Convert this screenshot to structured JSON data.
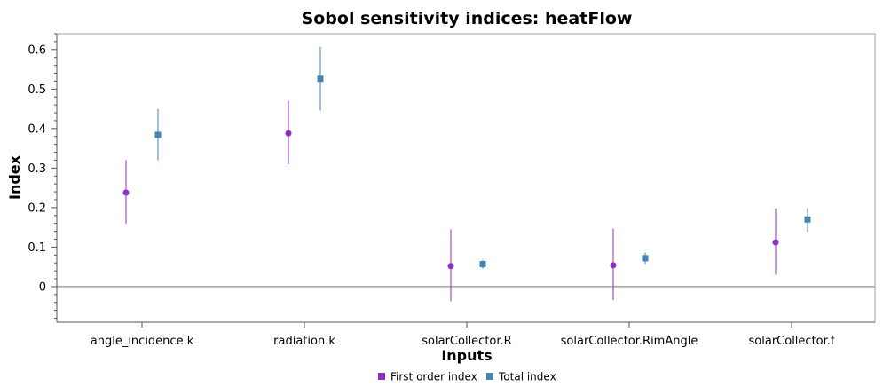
{
  "chart_data": {
    "type": "scatter",
    "title": "Sobol sensitivity indices: heatFlow",
    "xlabel": "Inputs",
    "ylabel": "Index",
    "categories": [
      "angle_incidence.k",
      "radiation.k",
      "solarCollector.R",
      "solarCollector.RimAngle",
      "solarCollector.f"
    ],
    "ylim": [
      -0.09,
      0.64
    ],
    "yticks": [
      0,
      0.1,
      0.2,
      0.3,
      0.4,
      0.5,
      0.6
    ],
    "yticklabels": [
      "0",
      "0.1",
      "0.2",
      "0.3",
      "0.4",
      "0.5",
      "0.6"
    ],
    "grid": false,
    "zero_line": true,
    "legend_position": "bottom",
    "series": [
      {
        "name": "First order index",
        "color": "#8b2fc9",
        "marker": "circle",
        "values": [
          0.238,
          0.388,
          0.052,
          0.054,
          0.112
        ],
        "lower": [
          0.16,
          0.31,
          -0.037,
          -0.034,
          0.03
        ],
        "upper": [
          0.32,
          0.47,
          0.145,
          0.147,
          0.198
        ]
      },
      {
        "name": "Total index",
        "color": "#4682b4",
        "marker": "square",
        "values": [
          0.384,
          0.526,
          0.057,
          0.072,
          0.17
        ],
        "lower": [
          0.32,
          0.446,
          0.046,
          0.058,
          0.139
        ],
        "upper": [
          0.449,
          0.607,
          0.068,
          0.086,
          0.199
        ]
      }
    ]
  }
}
